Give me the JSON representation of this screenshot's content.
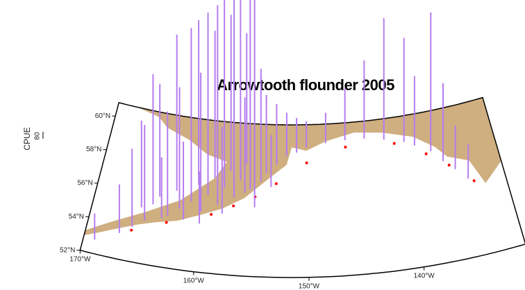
{
  "chart_data": {
    "type": "spike_map",
    "title": "Arrowtooth flounder 2005",
    "y_label": "CPUE",
    "scale_value": 80,
    "spike_color": "#b57cf0",
    "station_color": "#ff0000",
    "land_color": "#cfae80",
    "xticks": [
      {
        "value": -170,
        "label": "170°W"
      },
      {
        "value": -160,
        "label": "160°W"
      },
      {
        "value": -150,
        "label": "150°W"
      },
      {
        "value": -140,
        "label": "140°W"
      }
    ],
    "yticks": [
      {
        "value": 52,
        "label": "52°N"
      },
      {
        "value": 54,
        "label": "54°N"
      },
      {
        "value": 56,
        "label": "56°N"
      },
      {
        "value": 58,
        "label": "58°N"
      },
      {
        "value": 60,
        "label": "60°N"
      }
    ],
    "lon": [
      -169,
      -167,
      -166,
      -165,
      -164.5,
      -164,
      -163,
      -162.5,
      -162,
      -161,
      -160.5,
      -160,
      -159.5,
      -159,
      -158.5,
      -158,
      -157.5,
      -157,
      -156.5,
      -156,
      -155.5,
      -155,
      -154.5,
      -154,
      -153,
      -152,
      -151,
      -150,
      -148,
      -146,
      -144,
      -142,
      -140,
      -139,
      -137.5,
      -136.5,
      -135.5,
      -134.5,
      -163.5,
      -161.5,
      -160,
      -158,
      -156,
      -153.5,
      -165.5
    ],
    "lat": [
      52.8,
      53.5,
      54,
      54.5,
      55.5,
      56,
      55,
      56.5,
      55.5,
      56,
      57,
      55.5,
      56.5,
      57.5,
      56,
      57,
      58,
      56.5,
      57.5,
      58.5,
      57,
      56,
      57.5,
      58,
      58.5,
      59,
      59.2,
      59.5,
      59.7,
      59.8,
      59.8,
      59.6,
      59.3,
      59,
      58.5,
      57.8,
      57.2,
      56.5,
      54.8,
      54.9,
      54.8,
      55.5,
      56.8,
      57.2,
      55.2
    ],
    "values": [
      300,
      560,
      900,
      1100,
      1500,
      1300,
      1200,
      1800,
      1400,
      2000,
      1900,
      1600,
      2100,
      1700,
      2300,
      2500,
      1800,
      2600,
      2200,
      1500,
      2750,
      2400,
      1300,
      900,
      700,
      500,
      400,
      300,
      350,
      600,
      900,
      1400,
      1200,
      800,
      1600,
      900,
      500,
      400,
      700,
      900,
      600,
      1000,
      1100,
      600,
      1000
    ],
    "stations": {
      "lon": [
        -166,
        -163,
        -159,
        -157,
        -155,
        -153,
        -150,
        -146,
        -141,
        -138,
        -136,
        -134
      ],
      "lat": [
        53.8,
        54.6,
        55.4,
        56,
        56.6,
        57.4,
        58.6,
        59.4,
        59.3,
        58.4,
        57.5,
        56.3
      ]
    }
  }
}
